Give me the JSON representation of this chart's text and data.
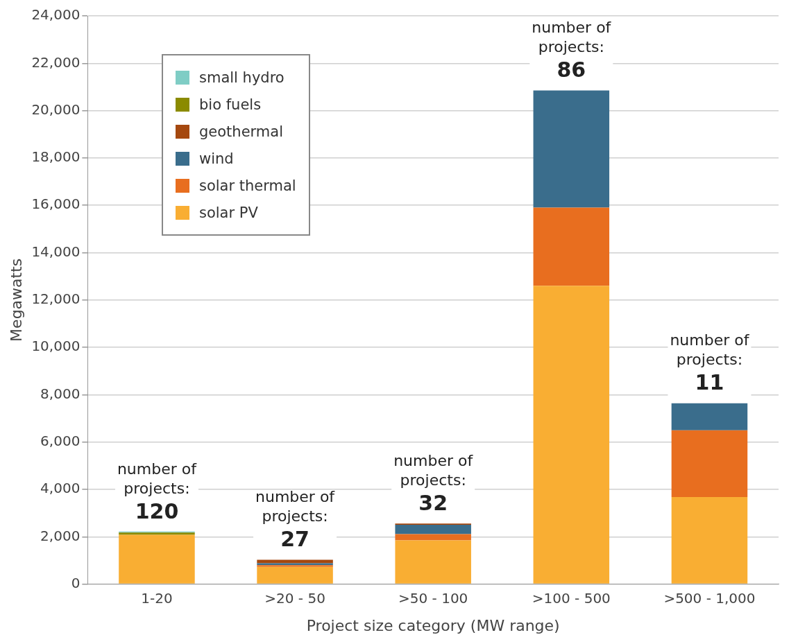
{
  "chart_data": {
    "type": "bar",
    "stacked": true,
    "xlabel": "Project size category (MW range)",
    "ylabel": "Megawatts",
    "categories": [
      "1-20",
      ">20 - 50",
      ">50 - 100",
      ">100 - 500",
      ">500 - 1,000"
    ],
    "series": [
      {
        "name": "solar PV",
        "color": "#f9ae33",
        "values": [
          2080,
          730,
          1850,
          12600,
          3680
        ]
      },
      {
        "name": "solar thermal",
        "color": "#e86e1f",
        "values": [
          0,
          70,
          260,
          3300,
          2820
        ]
      },
      {
        "name": "wind",
        "color": "#3a6d8c",
        "values": [
          0,
          80,
          400,
          4950,
          1140
        ]
      },
      {
        "name": "geothermal",
        "color": "#a5480f",
        "values": [
          0,
          150,
          50,
          0,
          0
        ]
      },
      {
        "name": "bio fuels",
        "color": "#8b8b00",
        "values": [
          100,
          0,
          0,
          0,
          0
        ]
      },
      {
        "name": "small hydro",
        "color": "#7fcdc5",
        "values": [
          40,
          0,
          0,
          0,
          0
        ]
      }
    ],
    "ylim": [
      0,
      24000
    ],
    "yticks": [
      0,
      {
        "value": 2000,
        "label": "2,000"
      },
      {
        "value": 4000,
        "label": "4,000"
      },
      {
        "value": 6000,
        "label": "6,000"
      },
      {
        "value": 8000,
        "label": "8,000"
      },
      {
        "value": 10000,
        "label": "10,000"
      },
      {
        "value": 12000,
        "label": "12,000"
      },
      {
        "value": 14000,
        "label": "14,000"
      },
      {
        "value": 16000,
        "label": "16,000"
      },
      {
        "value": 18000,
        "label": "18,000"
      },
      {
        "value": 20000,
        "label": "20,000"
      },
      {
        "value": 22000,
        "label": "22,000"
      },
      {
        "value": 24000,
        "label": "24,000"
      }
    ],
    "grid": "y",
    "legend": "top left",
    "annotations": [
      {
        "text": "number of projects: 120",
        "x": "1-20",
        "y": 2220
      },
      {
        "text": "number of projects: 27",
        "x": ">20 - 50",
        "y": 1030
      },
      {
        "text": "number of projects: 32",
        "x": ">50 - 100",
        "y": 2560
      },
      {
        "text": "number of projects: 86",
        "x": ">100 - 500",
        "y": 20850
      },
      {
        "text": "number of projects: 11",
        "x": ">500 - 1,000",
        "y": 7640
      }
    ]
  }
}
